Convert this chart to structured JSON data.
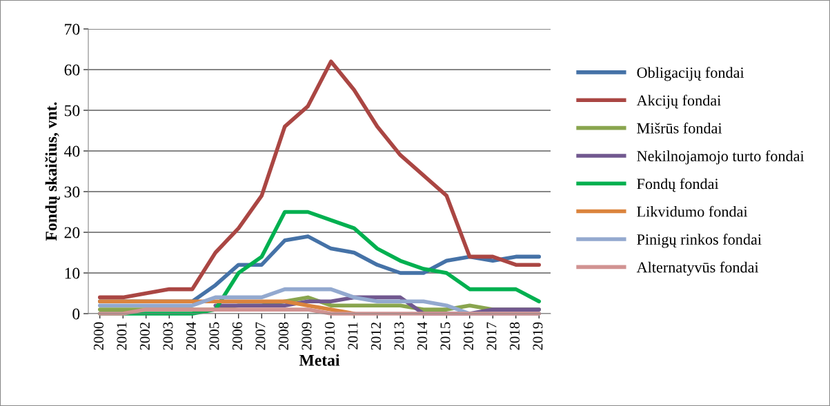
{
  "chart_data": {
    "type": "line",
    "xlabel": "Metai",
    "ylabel": "Fondų skaičius, vnt.",
    "categories": [
      "2000",
      "2001",
      "2002",
      "2003",
      "2004",
      "2005",
      "2006",
      "2007",
      "2008",
      "2009",
      "2010",
      "2011",
      "2012",
      "2013",
      "2014",
      "2015",
      "2016",
      "2017",
      "2018",
      "2019"
    ],
    "ylim": [
      0,
      70
    ],
    "yticks": [
      0,
      10,
      20,
      30,
      40,
      50,
      60,
      70
    ],
    "grid": "y",
    "legend": "right",
    "marker": "none",
    "line_style": "solid",
    "series": [
      {
        "name": "Obligacijų fondai",
        "color": "#4572a7",
        "values": [
          3,
          3,
          3,
          3,
          3,
          7,
          12,
          12,
          18,
          19,
          16,
          15,
          12,
          10,
          10,
          13,
          14,
          13,
          14,
          14
        ]
      },
      {
        "name": "Akcijų fondai",
        "color": "#aa4643",
        "values": [
          4,
          4,
          5,
          6,
          6,
          15,
          21,
          29,
          46,
          51,
          62,
          55,
          46,
          39,
          34,
          29,
          14,
          14,
          12,
          12
        ]
      },
      {
        "name": "Mišrūs fondai",
        "color": "#89a54e",
        "values": [
          1,
          1,
          1,
          1,
          1,
          1,
          2,
          2,
          3,
          4,
          2,
          2,
          2,
          2,
          1,
          1,
          2,
          1,
          1,
          1
        ]
      },
      {
        "name": "Nekilnojamojo turto fondai",
        "color": "#71588f",
        "values": [
          null,
          null,
          null,
          null,
          null,
          2,
          2,
          2,
          2,
          3,
          3,
          4,
          4,
          4,
          0,
          0,
          0,
          1,
          1,
          1
        ]
      },
      {
        "name": "Fondų fondai",
        "color": "#00b050",
        "values": [
          0,
          0,
          0,
          0,
          0,
          1,
          10,
          14,
          25,
          25,
          23,
          21,
          16,
          13,
          11,
          10,
          6,
          6,
          6,
          3
        ]
      },
      {
        "name": "Likvidumo fondai",
        "color": "#db843d",
        "values": [
          3,
          3,
          3,
          3,
          3,
          3,
          3,
          3,
          3,
          2,
          1,
          0,
          null,
          null,
          null,
          null,
          null,
          null,
          null,
          null
        ]
      },
      {
        "name": "Pinigų rinkos fondai",
        "color": "#93a9cf",
        "values": [
          2,
          2,
          2,
          2,
          2,
          4,
          4,
          4,
          6,
          6,
          6,
          4,
          3,
          3,
          3,
          2,
          0,
          0,
          0,
          0
        ]
      },
      {
        "name": "Alternatyvūs fondai",
        "color": "#d19392",
        "values": [
          0,
          0,
          1,
          1,
          1,
          1,
          1,
          1,
          1,
          1,
          0,
          0,
          0,
          0,
          0,
          0,
          0,
          0,
          0,
          0
        ]
      }
    ]
  }
}
